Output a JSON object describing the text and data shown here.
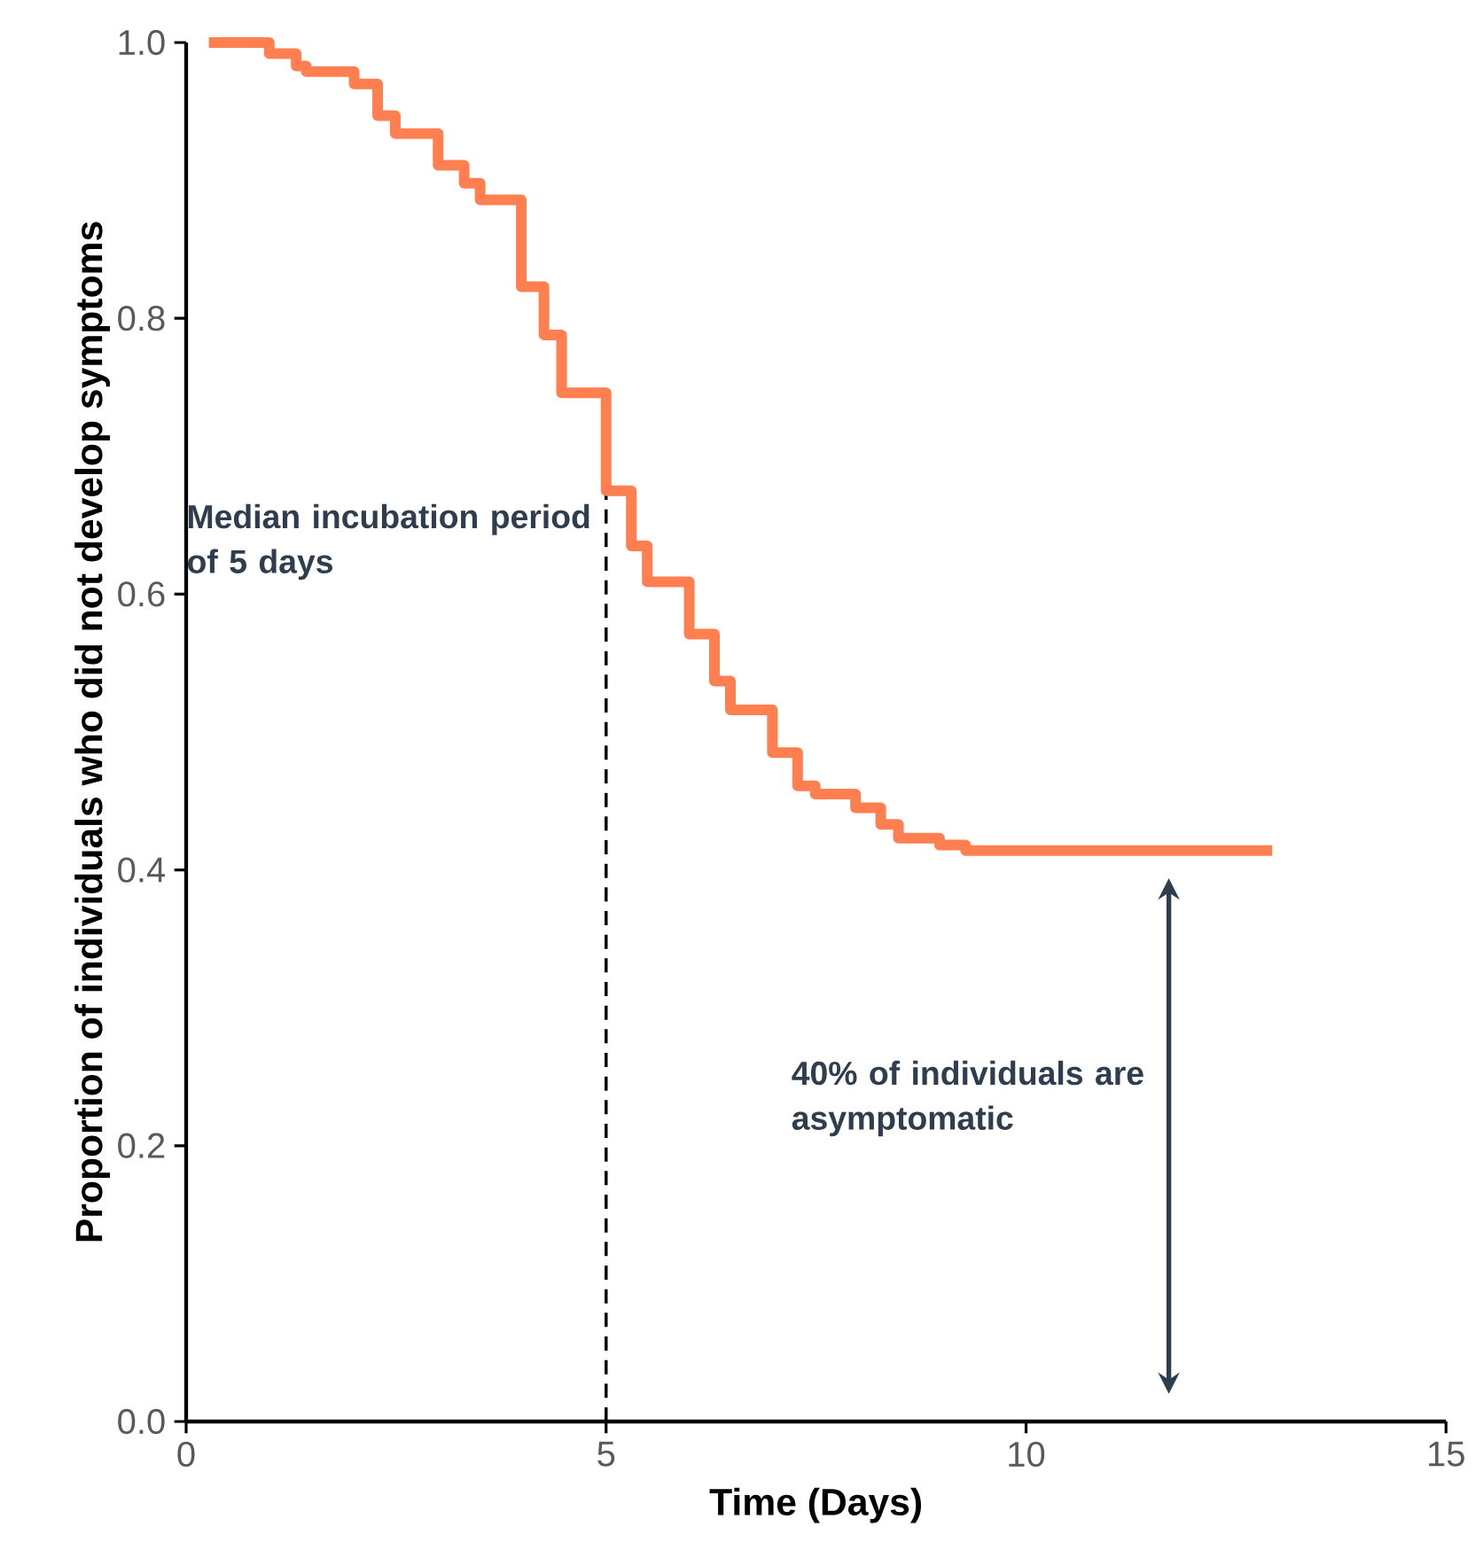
{
  "chart_data": {
    "type": "step",
    "xlabel": "Time (Days)",
    "ylabel": "Proportion of individuals who did not develop symptoms",
    "x": [
      0.27,
      0.99,
      1.31,
      1.43,
      2.0,
      2.28,
      2.49,
      3.0,
      3.31,
      3.5,
      3.99,
      4.26,
      4.47,
      5.0,
      5.3,
      5.49,
      5.99,
      6.29,
      6.48,
      6.98,
      7.28,
      7.49,
      7.97,
      8.27,
      8.48,
      8.97,
      9.28,
      12.93
    ],
    "values": [
      1.0,
      0.992,
      0.983,
      0.979,
      0.97,
      0.947,
      0.934,
      0.911,
      0.898,
      0.886,
      0.823,
      0.788,
      0.746,
      0.675,
      0.635,
      0.609,
      0.571,
      0.537,
      0.516,
      0.485,
      0.461,
      0.455,
      0.445,
      0.433,
      0.423,
      0.418,
      0.414,
      0.414
    ],
    "color": "#ff7f50",
    "xlim": [
      0,
      15
    ],
    "xticks": [
      0,
      5,
      10,
      15
    ],
    "ylim": [
      0,
      1
    ],
    "yticks": [
      {
        "value": 0,
        "label": "0.0"
      },
      0.2,
      0.4,
      0.6,
      0.8,
      {
        "value": 1,
        "label": "1.0"
      }
    ],
    "ref_lines": [
      {
        "axis": "x",
        "value": 5,
        "label": "Median incubation period of 5 days",
        "line_style": "dashed",
        "color": "#000000"
      }
    ],
    "annotations": [
      "40% of individuals are asymptomatic"
    ]
  }
}
